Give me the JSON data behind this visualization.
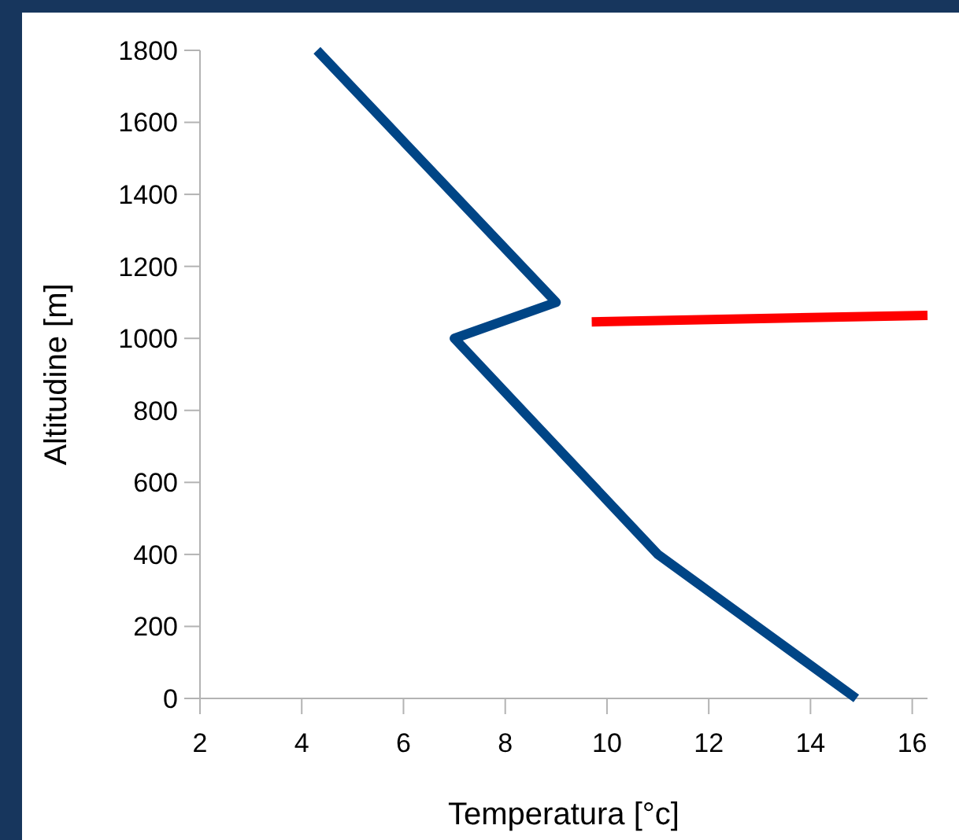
{
  "chart_data": {
    "type": "line",
    "xlabel": "Temperatura [°c]",
    "ylabel": "Altitudine [m]",
    "series": [
      {
        "color": "#004586",
        "x": [
          4.3,
          9,
          7,
          11,
          14.9
        ],
        "values": [
          1800,
          1100,
          1000,
          400,
          0
        ]
      },
      {
        "color": "#ff0000",
        "x": [
          9.7,
          16.3
        ],
        "values": [
          1046,
          1064
        ]
      }
    ],
    "xlim": [
      2,
      16.3
    ],
    "xticks": [
      2,
      4,
      6,
      8,
      10,
      12,
      14,
      16
    ],
    "ylim": [
      0,
      1800
    ],
    "yticks": [
      0,
      200,
      400,
      600,
      800,
      1000,
      1200,
      1400,
      1600,
      1800
    ],
    "grid": false,
    "marker": "none",
    "line_style": "solid"
  }
}
